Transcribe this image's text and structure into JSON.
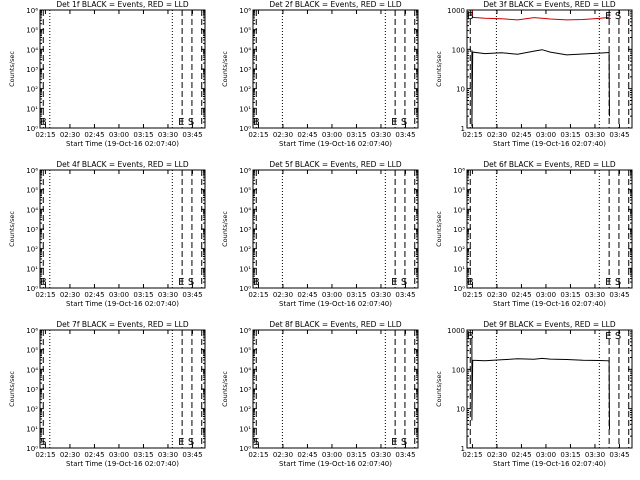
{
  "xlabel": "Start Time (19-Oct-16 02:07:40)",
  "ylabel": "Counts/sec",
  "x_ticks": [
    "02:15",
    "02:30",
    "02:45",
    "03:00",
    "03:15",
    "03:30",
    "03:45"
  ],
  "x_range_minutes": [
    4,
    105
  ],
  "colors": {
    "events": "#000000",
    "lld": "#cc0000"
  },
  "chart_data": [
    {
      "type": "line",
      "title": "Det 1f BLACK = Events, RED = LLD",
      "yscale": "log",
      "y_ticks": [
        "10⁰",
        "10¹",
        "10²",
        "10³",
        "10⁴",
        "10⁵",
        "10⁶"
      ],
      "ylim": [
        1,
        1000000
      ],
      "vlines_dotted": [
        10,
        85
      ],
      "vlines_dashed": [
        6,
        91,
        97,
        103
      ],
      "markers": [
        {
          "text": "B",
          "x": 6
        },
        {
          "text": "E",
          "x": 90.5
        },
        {
          "text": "S",
          "x": 96.5
        }
      ],
      "series": []
    },
    {
      "type": "line",
      "title": "Det 2f BLACK = Events, RED = LLD",
      "yscale": "log",
      "y_ticks": [
        "10⁰",
        "10¹",
        "10²",
        "10³",
        "10⁴",
        "10⁵",
        "10⁶"
      ],
      "ylim": [
        1,
        1000000
      ],
      "vlines_dotted": [
        22,
        85
      ],
      "vlines_dashed": [
        6,
        91,
        97,
        103
      ],
      "markers": [
        {
          "text": "B",
          "x": 6
        },
        {
          "text": "E",
          "x": 90.5
        },
        {
          "text": "S",
          "x": 96.5
        }
      ],
      "series": []
    },
    {
      "type": "line",
      "title": "Det 3f BLACK = Events, RED = LLD",
      "yscale": "log",
      "y_ticks": [
        "1",
        "10",
        "100",
        "1000"
      ],
      "ylim": [
        1,
        1000
      ],
      "vlines_dotted": [
        22,
        85
      ],
      "vlines_dashed": [
        6,
        91,
        97,
        103
      ],
      "markers": [
        {
          "text": "B",
          "x": 6
        },
        {
          "text": "E",
          "x": 90.5
        },
        {
          "text": "S",
          "x": 96.5
        }
      ],
      "series": [
        {
          "color": "#000000",
          "points": [
            [
              7,
              95
            ],
            [
              7,
              1.1
            ],
            [
              7.5,
              85
            ],
            [
              15,
              78
            ],
            [
              25,
              82
            ],
            [
              35,
              75
            ],
            [
              45,
              90
            ],
            [
              50,
              98
            ],
            [
              55,
              85
            ],
            [
              65,
              72
            ],
            [
              75,
              76
            ],
            [
              85,
              80
            ],
            [
              91,
              83
            ],
            [
              91.2,
              2
            ]
          ]
        },
        {
          "color": "#cc0000",
          "points": [
            [
              7,
              1000
            ],
            [
              7.5,
              650
            ],
            [
              15,
              620
            ],
            [
              25,
              600
            ],
            [
              35,
              560
            ],
            [
              45,
              640
            ],
            [
              50,
              620
            ],
            [
              55,
              590
            ],
            [
              65,
              560
            ],
            [
              75,
              575
            ],
            [
              85,
              610
            ],
            [
              91,
              650
            ],
            [
              91.2,
              900
            ]
          ]
        }
      ]
    },
    {
      "type": "line",
      "title": "Det 4f BLACK = Events, RED = LLD",
      "yscale": "log",
      "y_ticks": [
        "10⁰",
        "10¹",
        "10²",
        "10³",
        "10⁴",
        "10⁵",
        "10⁶"
      ],
      "ylim": [
        1,
        1000000
      ],
      "vlines_dotted": [
        10,
        85
      ],
      "vlines_dashed": [
        6,
        91,
        97,
        103
      ],
      "markers": [
        {
          "text": "B",
          "x": 6
        },
        {
          "text": "E",
          "x": 90.5
        },
        {
          "text": "S",
          "x": 96.5
        }
      ],
      "series": []
    },
    {
      "type": "line",
      "title": "Det 5f BLACK = Events, RED = LLD",
      "yscale": "log",
      "y_ticks": [
        "10⁰",
        "10¹",
        "10²",
        "10³",
        "10⁴",
        "10⁵",
        "10⁶"
      ],
      "ylim": [
        1,
        1000000
      ],
      "vlines_dotted": [
        22,
        85
      ],
      "vlines_dashed": [
        6,
        91,
        97,
        103
      ],
      "markers": [
        {
          "text": "B",
          "x": 6
        },
        {
          "text": "E",
          "x": 90.5
        },
        {
          "text": "S",
          "x": 96.5
        }
      ],
      "series": []
    },
    {
      "type": "line",
      "title": "Det 6f BLACK = Events, RED = LLD",
      "yscale": "log",
      "y_ticks": [
        "10⁰",
        "10¹",
        "10²",
        "10³",
        "10⁴",
        "10⁵",
        "10⁶"
      ],
      "ylim": [
        1,
        1000000
      ],
      "vlines_dotted": [
        22,
        85
      ],
      "vlines_dashed": [
        6,
        91,
        97,
        103
      ],
      "markers": [
        {
          "text": "B",
          "x": 6
        },
        {
          "text": "E",
          "x": 90.5
        },
        {
          "text": "S",
          "x": 96.5
        }
      ],
      "series": []
    },
    {
      "type": "line",
      "title": "Det 7f BLACK = Events, RED = LLD",
      "yscale": "log",
      "y_ticks": [
        "10⁰",
        "10¹",
        "10²",
        "10³",
        "10⁴",
        "10⁵",
        "10⁶"
      ],
      "ylim": [
        1,
        1000000
      ],
      "vlines_dotted": [
        10,
        85
      ],
      "vlines_dashed": [
        6,
        91,
        97,
        103
      ],
      "markers": [
        {
          "text": "S",
          "x": 6
        },
        {
          "text": "E",
          "x": 90.5
        },
        {
          "text": "S",
          "x": 96.5
        }
      ],
      "series": []
    },
    {
      "type": "line",
      "title": "Det 8f BLACK = Events, RED = LLD",
      "yscale": "log",
      "y_ticks": [
        "10⁰",
        "10¹",
        "10²",
        "10³",
        "10⁴",
        "10⁵",
        "10⁶"
      ],
      "ylim": [
        1,
        1000000
      ],
      "vlines_dotted": [
        22,
        85
      ],
      "vlines_dashed": [
        6,
        91,
        97,
        103
      ],
      "markers": [
        {
          "text": "S",
          "x": 6
        },
        {
          "text": "E",
          "x": 90.5
        },
        {
          "text": "S",
          "x": 96.5
        }
      ],
      "series": []
    },
    {
      "type": "line",
      "title": "Det 9f BLACK = Events, RED = LLD",
      "yscale": "log",
      "y_ticks": [
        "1",
        "10",
        "100",
        "1000"
      ],
      "ylim": [
        1,
        1000
      ],
      "vlines_dotted": [
        22,
        85
      ],
      "vlines_dashed": [
        6,
        91,
        97,
        103
      ],
      "markers": [
        {
          "text": "B",
          "x": 6
        },
        {
          "text": "E",
          "x": 90.5
        },
        {
          "text": "S",
          "x": 96.5
        }
      ],
      "series": [
        {
          "color": "#000000",
          "points": [
            [
              7,
              600
            ],
            [
              7,
              5
            ],
            [
              7.5,
              170
            ],
            [
              15,
              165
            ],
            [
              25,
              175
            ],
            [
              35,
              185
            ],
            [
              45,
              180
            ],
            [
              50,
              190
            ],
            [
              55,
              182
            ],
            [
              65,
              178
            ],
            [
              75,
              170
            ],
            [
              85,
              168
            ],
            [
              91,
              165
            ],
            [
              91.2,
              3
            ]
          ]
        }
      ]
    }
  ]
}
